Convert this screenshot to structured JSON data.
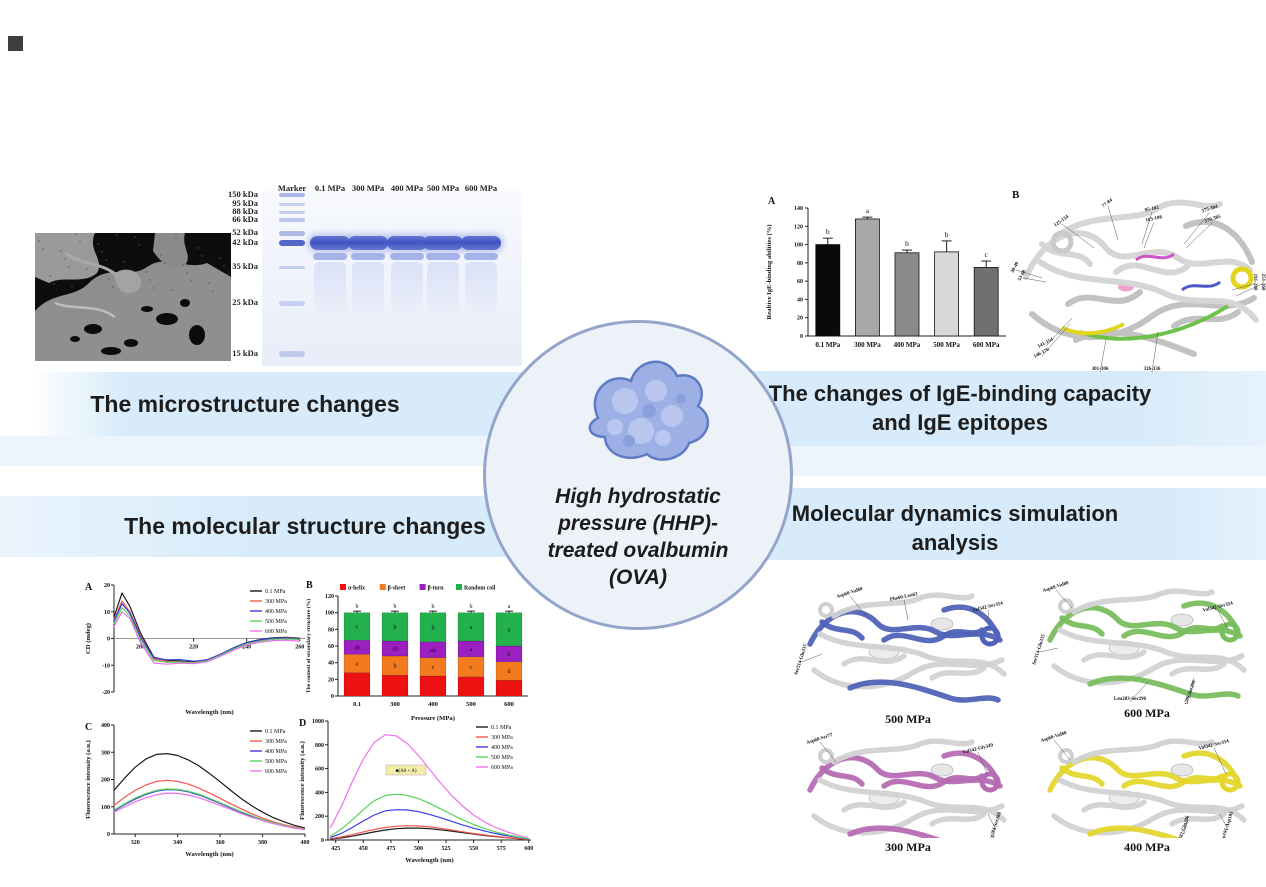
{
  "banners": {
    "microstructure": "The microstructure changes",
    "ige": "The changes of IgE-binding capacity and IgE epitopes",
    "molecular": "The molecular structure changes",
    "md": "Molecular dynamics simulation analysis"
  },
  "center": {
    "title_lines": [
      "High hydrostatic",
      "pressure (HHP)-",
      "treated ovalbumin",
      "(OVA)"
    ]
  },
  "gel": {
    "lane_headers": [
      "Marker",
      "0.1 MPa",
      "300 MPa",
      "400 MPa",
      "500 MPa",
      "600 MPa"
    ],
    "marker_labels": [
      "150 kDa",
      "95 kDa",
      "88 kDa",
      "66 kDa",
      "52 kDa",
      "42 kDa",
      "35 kDa",
      "25 kDa",
      "15 kDa"
    ]
  },
  "ige_structure": {
    "panel_label": "B",
    "epitopes": [
      "125-134",
      "77-84",
      "95-102",
      "103-108",
      "375-384",
      "370-385",
      "38-49",
      "53-68",
      "141-154",
      "146-176",
      "301-306",
      "326-336",
      "191-200",
      "251-260"
    ]
  },
  "md_structures": [
    {
      "caption": "500 MPa",
      "color": "#5163b8",
      "labels": [
        "Asp68-Val80",
        "Phe60-Leu63",
        "Ser314-Glu335",
        "Val342-Ser354"
      ]
    },
    {
      "caption": "600 MPa",
      "color": "#79bd5e",
      "labels": [
        "Asp68-Val80",
        "Ser314-Glu335",
        "Val342-Ser354",
        "Leu283-Ser296",
        "Arg280-Ser296"
      ]
    },
    {
      "caption": "300 MPa",
      "color": "#b56cb2",
      "labels": [
        "Asp68-Ser77",
        "Val342-Gly349",
        "Arg284-Ser288"
      ]
    },
    {
      "caption": "400 MPa",
      "color": "#e3d72e",
      "labels": [
        "Asp68-Val80",
        "Val342-Ser354",
        "Thr282-Gln286",
        "Asp191-Asp195"
      ]
    }
  ],
  "chart_data": [
    {
      "id": "ige_binding",
      "type": "bar",
      "panel_label": "A",
      "ylabel": "Realtive IgE-binding abilities (%)",
      "xlabel": "",
      "categories": [
        "0.1 MPa",
        "300 MPa",
        "400 MPa",
        "500 MPa",
        "600 MPa"
      ],
      "values": [
        100,
        128,
        91,
        92,
        75
      ],
      "errors": [
        7,
        2,
        3,
        12,
        7
      ],
      "sig_letters": [
        "b",
        "a",
        "b",
        "b",
        "c"
      ],
      "bar_colors": [
        "#0a0a0a",
        "#a8a8a8",
        "#8a8a8a",
        "#d8d8d8",
        "#707070"
      ],
      "ylim": [
        0,
        140
      ],
      "ytick_step": 20,
      "grid": false
    },
    {
      "id": "cd_spectra",
      "type": "line",
      "panel_label": "A",
      "xlabel": "Wavelength (nm)",
      "ylabel": "CD (mdeg)",
      "xlim": [
        190,
        262
      ],
      "ylim": [
        -20,
        20
      ],
      "xticks": [
        200,
        220,
        240,
        260
      ],
      "yticks": [
        -20,
        -10,
        0,
        10,
        20
      ],
      "zero_axis": true,
      "legend_position": "top-right",
      "x": [
        190,
        193,
        196,
        200,
        205,
        210,
        215,
        220,
        225,
        230,
        235,
        240,
        245,
        250,
        255,
        260
      ],
      "series": [
        {
          "name": "0.1 MPa",
          "color": "#1a1a1a",
          "y": [
            8,
            17,
            12,
            2,
            -7,
            -8.2,
            -8.5,
            -8.8,
            -8,
            -6,
            -3.5,
            -1.5,
            -0.4,
            0.3,
            0.4,
            0.1
          ]
        },
        {
          "name": "300 MPa",
          "color": "#f4564e",
          "y": [
            7,
            14,
            10,
            1,
            -7.6,
            -8.6,
            -8.8,
            -9,
            -8.2,
            -6.2,
            -3.8,
            -1.8,
            -0.7,
            0.1,
            0.2,
            -0.1
          ]
        },
        {
          "name": "400 MPa",
          "color": "#3a3ae8",
          "y": [
            6.5,
            13,
            9.5,
            0.5,
            -7.2,
            -8,
            -7.9,
            -8.5,
            -8,
            -6,
            -3.6,
            -1.6,
            -0.5,
            0.1,
            0.1,
            -0.2
          ]
        },
        {
          "name": "500 MPa",
          "color": "#55d555",
          "y": [
            5.5,
            11.5,
            8.5,
            -0.5,
            -8.2,
            -8.9,
            -8.8,
            -9.1,
            -8.4,
            -6.4,
            -4,
            -2,
            -1,
            -0.3,
            -0.1,
            -0.4
          ]
        },
        {
          "name": "600 MPa",
          "color": "#ee6fee",
          "y": [
            4.5,
            10,
            7.5,
            -1.5,
            -9.2,
            -9.6,
            -9.2,
            -9.4,
            -8.7,
            -6.7,
            -4.4,
            -2.4,
            -1.4,
            -0.8,
            -0.6,
            -1
          ]
        }
      ]
    },
    {
      "id": "secondary_structure",
      "type": "stacked-bar",
      "panel_label": "B",
      "xlabel": "Pressure (MPa)",
      "ylabel": "The content of secondary structure (%)",
      "categories": [
        "0.1",
        "300",
        "400",
        "500",
        "600"
      ],
      "ylim": [
        0,
        120
      ],
      "ytick_step": 20,
      "series": [
        {
          "name": "α-helix",
          "color": "#ee1111",
          "values": [
            28,
            25,
            24,
            23,
            19
          ],
          "letters": [
            "",
            "",
            "",
            "",
            ""
          ]
        },
        {
          "name": "β-sheet",
          "color": "#f47a1f",
          "values": [
            22,
            23,
            22,
            24,
            22
          ],
          "letters": [
            "a",
            "b",
            "c",
            "c",
            "d"
          ]
        },
        {
          "name": "β-turn",
          "color": "#9b1fc1",
          "values": [
            17,
            18,
            19,
            19,
            19
          ],
          "letters": [
            "ab",
            "ab",
            "ab",
            "a",
            "b"
          ]
        },
        {
          "name": "Random coil",
          "color": "#22b14c",
          "values": [
            33,
            34,
            35,
            34,
            40
          ],
          "letters": [
            "c",
            "b",
            "b",
            "a",
            "a"
          ]
        }
      ],
      "top_letters": [
        "b",
        "b",
        "b",
        "b",
        "a"
      ]
    },
    {
      "id": "intrinsic_fluorescence",
      "type": "line",
      "panel_label": "C",
      "xlabel": "Wavelength (nm)",
      "ylabel": "Fluorescence intensity (a.u.)",
      "xlim": [
        310,
        400
      ],
      "ylim": [
        0,
        400
      ],
      "xticks": [
        320,
        340,
        360,
        380,
        400
      ],
      "yticks": [
        0,
        100,
        200,
        300,
        400
      ],
      "legend_position": "top-right",
      "x": [
        310,
        315,
        320,
        325,
        330,
        335,
        340,
        345,
        350,
        355,
        360,
        365,
        370,
        375,
        380,
        385,
        390,
        395,
        400
      ],
      "series": [
        {
          "name": "0.1 MPa",
          "color": "#1a1a1a",
          "y": [
            160,
            205,
            245,
            275,
            292,
            295,
            288,
            272,
            250,
            222,
            192,
            160,
            130,
            103,
            80,
            60,
            45,
            32,
            22
          ]
        },
        {
          "name": "300 MPa",
          "color": "#f4564e",
          "y": [
            105,
            135,
            160,
            180,
            193,
            197,
            193,
            183,
            168,
            150,
            131,
            111,
            92,
            74,
            58,
            45,
            34,
            26,
            19
          ]
        },
        {
          "name": "400 MPa",
          "color": "#3a3ae8",
          "y": [
            85,
            108,
            128,
            145,
            157,
            163,
            162,
            155,
            143,
            128,
            112,
            95,
            79,
            64,
            50,
            39,
            30,
            22,
            16
          ]
        },
        {
          "name": "500 MPa",
          "color": "#55d555",
          "y": [
            88,
            111,
            132,
            148,
            160,
            165,
            164,
            157,
            146,
            131,
            115,
            98,
            82,
            67,
            53,
            42,
            32,
            24,
            18
          ]
        },
        {
          "name": "600 MPa",
          "color": "#ee6fee",
          "y": [
            80,
            100,
            118,
            133,
            144,
            150,
            149,
            143,
            133,
            120,
            105,
            90,
            75,
            61,
            49,
            38,
            29,
            22,
            16
          ]
        }
      ]
    },
    {
      "id": "ans_fluorescence",
      "type": "line",
      "panel_label": "D",
      "xlabel": "Wavelength (nm)",
      "ylabel": "Fluorescence intensity (a.u.)",
      "xlim": [
        418,
        602
      ],
      "ylim": [
        0,
        1000
      ],
      "xticks": [
        425,
        450,
        475,
        500,
        525,
        550,
        575,
        600
      ],
      "yticks": [
        0,
        200,
        400,
        600,
        800,
        1000
      ],
      "legend_position": "top-right",
      "annotation": {
        "text": "■(A8 + A)",
        "bg": "#f3eda7"
      },
      "x": [
        420,
        430,
        440,
        450,
        460,
        470,
        480,
        490,
        500,
        510,
        520,
        530,
        540,
        550,
        560,
        570,
        580,
        590,
        600
      ],
      "series": [
        {
          "name": "0.1 MPa",
          "color": "#1a1a1a",
          "y": [
            8,
            18,
            32,
            50,
            68,
            84,
            95,
            100,
            100,
            95,
            86,
            74,
            62,
            50,
            38,
            28,
            19,
            11,
            4
          ]
        },
        {
          "name": "300 MPa",
          "color": "#f4564e",
          "y": [
            10,
            25,
            45,
            68,
            88,
            105,
            115,
            120,
            118,
            110,
            98,
            84,
            69,
            55,
            42,
            31,
            21,
            13,
            5
          ]
        },
        {
          "name": "400 MPa",
          "color": "#3a3ae8",
          "y": [
            20,
            55,
            105,
            160,
            210,
            245,
            255,
            252,
            238,
            215,
            187,
            157,
            127,
            99,
            75,
            54,
            37,
            22,
            8
          ]
        },
        {
          "name": "500 MPa",
          "color": "#55d555",
          "y": [
            30,
            90,
            170,
            255,
            330,
            375,
            385,
            375,
            348,
            308,
            262,
            215,
            170,
            130,
            96,
            68,
            45,
            25,
            10
          ]
        },
        {
          "name": "600 MPa",
          "color": "#ee6fee",
          "y": [
            100,
            280,
            490,
            680,
            820,
            885,
            875,
            810,
            710,
            595,
            480,
            375,
            285,
            210,
            150,
            105,
            70,
            40,
            15
          ]
        }
      ]
    }
  ]
}
